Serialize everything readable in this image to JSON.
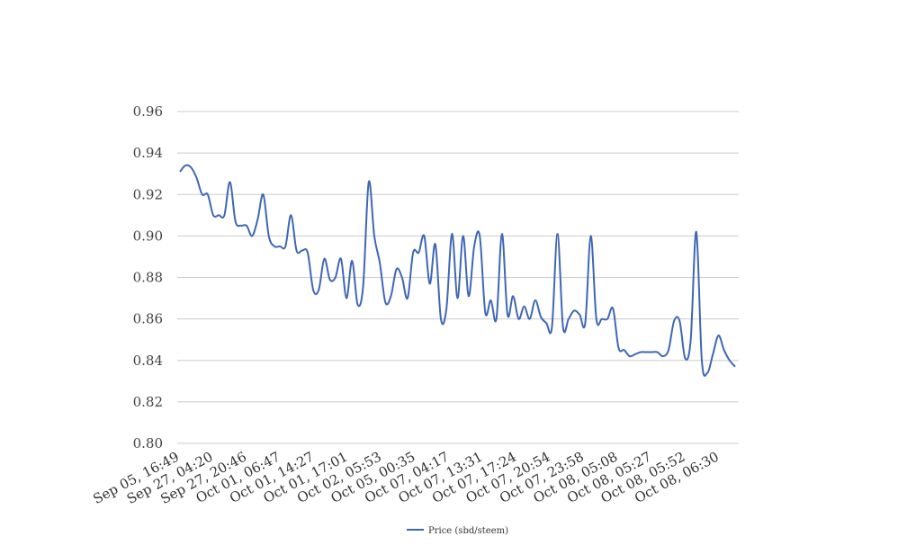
{
  "chart_data": {
    "type": "line",
    "title": "",
    "xlabel": "",
    "ylabel": "",
    "ylim": [
      0.8,
      0.96
    ],
    "yticks": [
      "0.80",
      "0.82",
      "0.84",
      "0.86",
      "0.88",
      "0.90",
      "0.92",
      "0.94",
      "0.96"
    ],
    "grid": true,
    "legend_position": "bottom-center",
    "x_tick_labels": [
      "Sep 05, 16:49",
      "Sep 27, 04:20",
      "Sep 27, 20:46",
      "Oct 01, 06:47",
      "Oct 01, 14:27",
      "Oct 01, 17:01",
      "Oct 02, 05:53",
      "Oct 05, 00:35",
      "Oct 07, 04:17",
      "Oct 07, 13:31",
      "Oct 07, 17:24",
      "Oct 07, 20:54",
      "Oct 07, 23:58",
      "Oct 08, 05:08",
      "Oct 08, 05:27",
      "Oct 08, 05:52",
      "Oct 08, 06:30"
    ],
    "series": [
      {
        "name": "Price (sbd/steem)",
        "color": "#3f67b6",
        "values": [
          0.931,
          0.934,
          0.933,
          0.928,
          0.92,
          0.92,
          0.91,
          0.91,
          0.91,
          0.926,
          0.907,
          0.905,
          0.905,
          0.9,
          0.908,
          0.92,
          0.9,
          0.895,
          0.895,
          0.895,
          0.91,
          0.893,
          0.893,
          0.892,
          0.874,
          0.874,
          0.889,
          0.879,
          0.88,
          0.889,
          0.87,
          0.888,
          0.867,
          0.876,
          0.926,
          0.9,
          0.887,
          0.868,
          0.871,
          0.884,
          0.88,
          0.87,
          0.892,
          0.892,
          0.9,
          0.877,
          0.896,
          0.86,
          0.865,
          0.901,
          0.87,
          0.9,
          0.871,
          0.895,
          0.9,
          0.863,
          0.869,
          0.86,
          0.901,
          0.862,
          0.871,
          0.86,
          0.866,
          0.86,
          0.869,
          0.861,
          0.858,
          0.856,
          0.901,
          0.856,
          0.86,
          0.864,
          0.862,
          0.858,
          0.9,
          0.86,
          0.86,
          0.86,
          0.865,
          0.846,
          0.845,
          0.842,
          0.843,
          0.844,
          0.844,
          0.844,
          0.844,
          0.842,
          0.845,
          0.859,
          0.859,
          0.841,
          0.85,
          0.902,
          0.84,
          0.834,
          0.843,
          0.852,
          0.845,
          0.84,
          0.837
        ]
      }
    ]
  }
}
